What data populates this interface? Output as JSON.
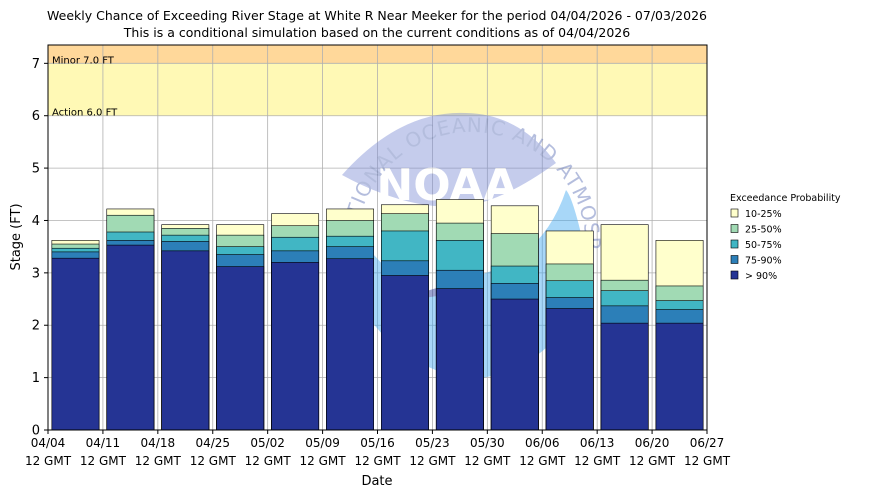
{
  "chart_data": {
    "type": "bar",
    "title": "Weekly Chance of Exceeding River Stage at White R Near Meeker for the period 04/04/2026 - 07/03/2026",
    "subtitle": "This is a conditional simulation based on the current conditions as of 04/04/2026",
    "xlabel": "Date",
    "ylabel": "Stage (FT)",
    "ylim": [
      0,
      7.35
    ],
    "yticks": [
      0,
      1,
      2,
      3,
      4,
      5,
      6,
      7
    ],
    "grid": true,
    "legend": {
      "title": "Exceedance Probability",
      "placement": "right",
      "entries": [
        "10-25%",
        "25-50%",
        "50-75%",
        "75-90%",
        "> 90%"
      ]
    },
    "x_tick_labels": [
      [
        "04/04",
        "12 GMT"
      ],
      [
        "04/11",
        "12 GMT"
      ],
      [
        "04/18",
        "12 GMT"
      ],
      [
        "04/25",
        "12 GMT"
      ],
      [
        "05/02",
        "12 GMT"
      ],
      [
        "05/09",
        "12 GMT"
      ],
      [
        "05/16",
        "12 GMT"
      ],
      [
        "05/23",
        "12 GMT"
      ],
      [
        "05/30",
        "12 GMT"
      ],
      [
        "06/06",
        "12 GMT"
      ],
      [
        "06/13",
        "12 GMT"
      ],
      [
        "06/20",
        "12 GMT"
      ],
      [
        "06/27",
        "12 GMT"
      ]
    ],
    "weeks": [
      "04/04",
      "04/11",
      "04/18",
      "04/25",
      "05/02",
      "05/09",
      "05/16",
      "05/23",
      "05/30",
      "06/06",
      "06/13",
      "06/20"
    ],
    "series": [
      {
        "name": "> 90%",
        "color": "#253494",
        "values": [
          3.28,
          3.53,
          3.42,
          3.12,
          3.2,
          3.27,
          2.95,
          2.7,
          2.5,
          2.32,
          2.04,
          2.04
        ]
      },
      {
        "name": "75-90%",
        "color": "#2c7fb8",
        "values": [
          3.4,
          3.62,
          3.6,
          3.35,
          3.42,
          3.5,
          3.23,
          3.05,
          2.8,
          2.53,
          2.37,
          2.3
        ]
      },
      {
        "name": "50-75%",
        "color": "#41b6c4",
        "values": [
          3.47,
          3.78,
          3.72,
          3.5,
          3.68,
          3.7,
          3.8,
          3.62,
          3.13,
          2.85,
          2.66,
          2.47
        ]
      },
      {
        "name": "25-50%",
        "color": "#a1dab4",
        "values": [
          3.55,
          4.1,
          3.85,
          3.72,
          3.9,
          4.0,
          4.13,
          3.95,
          3.75,
          3.17,
          2.86,
          2.75
        ]
      },
      {
        "name": "10-25%",
        "color": "#ffffcc",
        "values": [
          3.62,
          4.22,
          3.92,
          3.92,
          4.13,
          4.22,
          4.3,
          4.4,
          4.28,
          3.8,
          3.92,
          3.62
        ]
      }
    ],
    "thresholds": [
      {
        "label": "Minor 7.0 FT",
        "from": 7.0,
        "to": 7.35,
        "color": "#ffd89a"
      },
      {
        "label": "Action 6.0 FT",
        "from": 6.0,
        "to": 7.0,
        "color": "#fff9b5"
      }
    ],
    "watermark": {
      "text": "NOAA",
      "ring_text": "NATIONAL OCEANIC AND ATMOSPHERIC ADMINISTRATION"
    }
  }
}
